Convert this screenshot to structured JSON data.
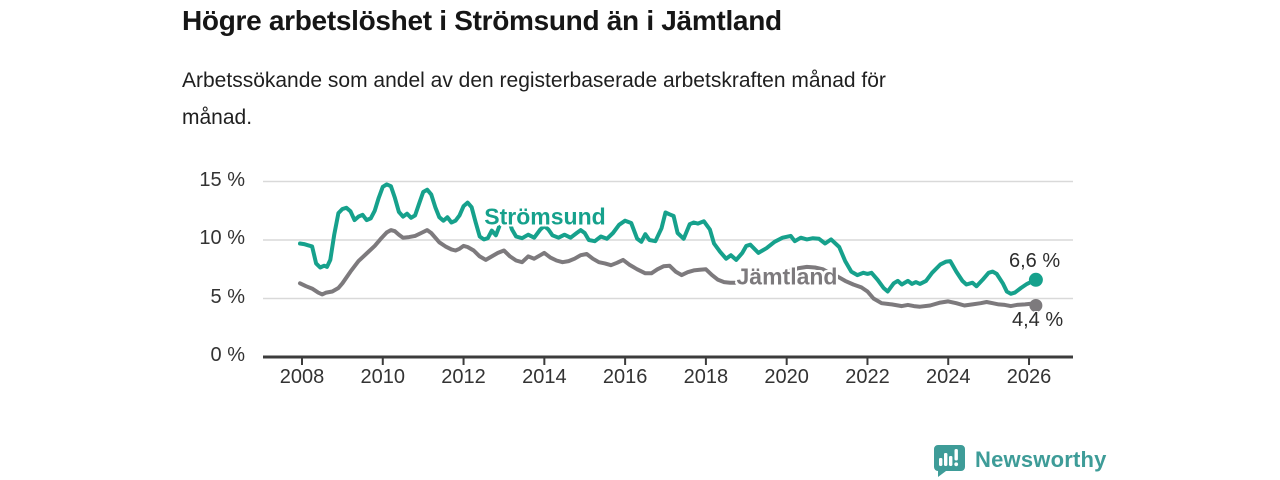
{
  "header": {
    "title": "Högre arbetslöshet i Strömsund än i Jämtland",
    "subtitle_line1": "Arbetssökande som andel av den registerbaserade arbetskraften månad för",
    "subtitle_line2": "månad."
  },
  "branding": {
    "name": "Newsworthy",
    "color": "#3e9c98",
    "icon": "bar-chart-speech-bubble-icon"
  },
  "chart_data": {
    "type": "line",
    "title": "Högre arbetslöshet i Strömsund än i Jämtland",
    "subtitle": "Arbetssökande som andel av den registerbaserade arbetskraften månad för månad.",
    "unit": "%",
    "grid": "horizontal",
    "x_axis": {
      "ticks": [
        2008,
        2010,
        2012,
        2014,
        2016,
        2018,
        2020,
        2022,
        2024,
        2026
      ],
      "range": [
        2007.05,
        2027.1
      ]
    },
    "y_axis": {
      "ticks": [
        {
          "value": 0,
          "label": "0 %"
        },
        {
          "value": 5,
          "label": "5 %"
        },
        {
          "value": 10,
          "label": "10 %"
        },
        {
          "value": 15,
          "label": "15 %"
        }
      ],
      "range": [
        0,
        16
      ]
    },
    "colors": {
      "gridline": "#d9d9d9",
      "axis": "#3c3c3c",
      "text": "#333333"
    },
    "series": [
      {
        "name": "Strömsund",
        "color": "#16a18c",
        "end_label": "6,6 %",
        "end_value": 6.6,
        "points": [
          [
            2007.95,
            9.7
          ],
          [
            2008.05,
            9.65
          ],
          [
            2008.15,
            9.55
          ],
          [
            2008.25,
            9.45
          ],
          [
            2008.35,
            8.0
          ],
          [
            2008.45,
            7.65
          ],
          [
            2008.55,
            7.8
          ],
          [
            2008.62,
            7.7
          ],
          [
            2008.7,
            8.3
          ],
          [
            2008.8,
            10.5
          ],
          [
            2008.9,
            12.3
          ],
          [
            2009.0,
            12.65
          ],
          [
            2009.1,
            12.75
          ],
          [
            2009.2,
            12.45
          ],
          [
            2009.3,
            11.7
          ],
          [
            2009.4,
            12.0
          ],
          [
            2009.5,
            12.15
          ],
          [
            2009.6,
            11.7
          ],
          [
            2009.7,
            11.85
          ],
          [
            2009.8,
            12.5
          ],
          [
            2009.9,
            13.6
          ],
          [
            2010.0,
            14.55
          ],
          [
            2010.1,
            14.75
          ],
          [
            2010.2,
            14.6
          ],
          [
            2010.3,
            13.6
          ],
          [
            2010.4,
            12.4
          ],
          [
            2010.5,
            12.0
          ],
          [
            2010.6,
            12.25
          ],
          [
            2010.7,
            11.9
          ],
          [
            2010.8,
            12.1
          ],
          [
            2010.9,
            13.1
          ],
          [
            2011.0,
            14.1
          ],
          [
            2011.1,
            14.3
          ],
          [
            2011.2,
            13.9
          ],
          [
            2011.3,
            12.8
          ],
          [
            2011.4,
            11.95
          ],
          [
            2011.5,
            11.65
          ],
          [
            2011.6,
            11.95
          ],
          [
            2011.7,
            11.5
          ],
          [
            2011.8,
            11.65
          ],
          [
            2011.9,
            12.1
          ],
          [
            2012.0,
            12.9
          ],
          [
            2012.1,
            13.2
          ],
          [
            2012.2,
            12.8
          ],
          [
            2012.3,
            11.5
          ],
          [
            2012.4,
            10.3
          ],
          [
            2012.5,
            10.05
          ],
          [
            2012.6,
            10.15
          ],
          [
            2012.7,
            10.8
          ],
          [
            2012.8,
            10.4
          ],
          [
            2012.9,
            11.3
          ],
          [
            2013.0,
            12.1
          ],
          [
            2013.1,
            11.9
          ],
          [
            2013.2,
            10.9
          ],
          [
            2013.3,
            10.3
          ],
          [
            2013.45,
            10.15
          ],
          [
            2013.6,
            10.45
          ],
          [
            2013.75,
            10.2
          ],
          [
            2013.9,
            10.9
          ],
          [
            2014.0,
            11.2
          ],
          [
            2014.1,
            10.9
          ],
          [
            2014.2,
            10.4
          ],
          [
            2014.35,
            10.2
          ],
          [
            2014.5,
            10.45
          ],
          [
            2014.65,
            10.2
          ],
          [
            2014.8,
            10.6
          ],
          [
            2014.9,
            10.85
          ],
          [
            2015.0,
            10.6
          ],
          [
            2015.1,
            10.0
          ],
          [
            2015.25,
            9.9
          ],
          [
            2015.4,
            10.3
          ],
          [
            2015.55,
            10.1
          ],
          [
            2015.7,
            10.6
          ],
          [
            2015.85,
            11.3
          ],
          [
            2016.0,
            11.65
          ],
          [
            2016.15,
            11.45
          ],
          [
            2016.3,
            10.1
          ],
          [
            2016.4,
            9.85
          ],
          [
            2016.5,
            10.5
          ],
          [
            2016.6,
            10.0
          ],
          [
            2016.75,
            9.9
          ],
          [
            2016.9,
            11.0
          ],
          [
            2017.0,
            12.35
          ],
          [
            2017.1,
            12.2
          ],
          [
            2017.2,
            12.05
          ],
          [
            2017.3,
            10.6
          ],
          [
            2017.45,
            10.1
          ],
          [
            2017.6,
            11.35
          ],
          [
            2017.7,
            11.5
          ],
          [
            2017.8,
            11.4
          ],
          [
            2017.95,
            11.6
          ],
          [
            2018.1,
            10.9
          ],
          [
            2018.2,
            9.7
          ],
          [
            2018.35,
            9.0
          ],
          [
            2018.5,
            8.4
          ],
          [
            2018.62,
            8.7
          ],
          [
            2018.75,
            8.3
          ],
          [
            2018.9,
            8.9
          ],
          [
            2019.0,
            9.5
          ],
          [
            2019.1,
            9.6
          ],
          [
            2019.3,
            8.9
          ],
          [
            2019.5,
            9.3
          ],
          [
            2019.7,
            9.85
          ],
          [
            2019.9,
            10.2
          ],
          [
            2020.1,
            10.35
          ],
          [
            2020.2,
            9.9
          ],
          [
            2020.35,
            10.2
          ],
          [
            2020.5,
            10.05
          ],
          [
            2020.65,
            10.15
          ],
          [
            2020.8,
            10.1
          ],
          [
            2020.95,
            9.7
          ],
          [
            2021.1,
            10.05
          ],
          [
            2021.3,
            9.4
          ],
          [
            2021.45,
            8.2
          ],
          [
            2021.6,
            7.3
          ],
          [
            2021.75,
            7.0
          ],
          [
            2021.9,
            7.2
          ],
          [
            2022.0,
            7.1
          ],
          [
            2022.1,
            7.2
          ],
          [
            2022.25,
            6.6
          ],
          [
            2022.4,
            5.9
          ],
          [
            2022.5,
            5.6
          ],
          [
            2022.65,
            6.3
          ],
          [
            2022.75,
            6.5
          ],
          [
            2022.85,
            6.2
          ],
          [
            2023.0,
            6.5
          ],
          [
            2023.1,
            6.25
          ],
          [
            2023.2,
            6.4
          ],
          [
            2023.3,
            6.25
          ],
          [
            2023.45,
            6.5
          ],
          [
            2023.6,
            7.2
          ],
          [
            2023.8,
            7.9
          ],
          [
            2023.95,
            8.15
          ],
          [
            2024.05,
            8.2
          ],
          [
            2024.2,
            7.3
          ],
          [
            2024.35,
            6.5
          ],
          [
            2024.45,
            6.2
          ],
          [
            2024.6,
            6.35
          ],
          [
            2024.7,
            6.05
          ],
          [
            2024.85,
            6.6
          ],
          [
            2025.0,
            7.2
          ],
          [
            2025.1,
            7.3
          ],
          [
            2025.2,
            7.1
          ],
          [
            2025.35,
            6.3
          ],
          [
            2025.45,
            5.6
          ],
          [
            2025.55,
            5.4
          ],
          [
            2025.65,
            5.5
          ],
          [
            2025.8,
            5.9
          ],
          [
            2025.95,
            6.25
          ],
          [
            2026.1,
            6.5
          ],
          [
            2026.17,
            6.6
          ]
        ]
      },
      {
        "name": "Jämtland",
        "color": "#7d7a7d",
        "end_label": "4,4 %",
        "end_value": 4.4,
        "points": [
          [
            2007.95,
            6.3
          ],
          [
            2008.1,
            6.05
          ],
          [
            2008.25,
            5.85
          ],
          [
            2008.4,
            5.5
          ],
          [
            2008.5,
            5.35
          ],
          [
            2008.6,
            5.5
          ],
          [
            2008.75,
            5.6
          ],
          [
            2008.9,
            5.9
          ],
          [
            2009.0,
            6.3
          ],
          [
            2009.2,
            7.3
          ],
          [
            2009.4,
            8.2
          ],
          [
            2009.6,
            8.85
          ],
          [
            2009.8,
            9.5
          ],
          [
            2009.95,
            10.1
          ],
          [
            2010.1,
            10.65
          ],
          [
            2010.2,
            10.85
          ],
          [
            2010.3,
            10.75
          ],
          [
            2010.4,
            10.45
          ],
          [
            2010.5,
            10.2
          ],
          [
            2010.65,
            10.25
          ],
          [
            2010.8,
            10.35
          ],
          [
            2010.95,
            10.6
          ],
          [
            2011.1,
            10.85
          ],
          [
            2011.2,
            10.6
          ],
          [
            2011.3,
            10.2
          ],
          [
            2011.4,
            9.8
          ],
          [
            2011.55,
            9.45
          ],
          [
            2011.7,
            9.2
          ],
          [
            2011.8,
            9.1
          ],
          [
            2011.9,
            9.25
          ],
          [
            2012.0,
            9.5
          ],
          [
            2012.1,
            9.4
          ],
          [
            2012.25,
            9.1
          ],
          [
            2012.4,
            8.6
          ],
          [
            2012.55,
            8.3
          ],
          [
            2012.7,
            8.6
          ],
          [
            2012.85,
            8.9
          ],
          [
            2013.0,
            9.1
          ],
          [
            2013.15,
            8.6
          ],
          [
            2013.3,
            8.25
          ],
          [
            2013.45,
            8.1
          ],
          [
            2013.6,
            8.6
          ],
          [
            2013.75,
            8.4
          ],
          [
            2013.9,
            8.7
          ],
          [
            2014.0,
            8.9
          ],
          [
            2014.15,
            8.5
          ],
          [
            2014.3,
            8.25
          ],
          [
            2014.45,
            8.1
          ],
          [
            2014.6,
            8.2
          ],
          [
            2014.75,
            8.4
          ],
          [
            2014.9,
            8.7
          ],
          [
            2015.05,
            8.8
          ],
          [
            2015.2,
            8.4
          ],
          [
            2015.35,
            8.1
          ],
          [
            2015.5,
            8.0
          ],
          [
            2015.65,
            7.85
          ],
          [
            2015.8,
            8.05
          ],
          [
            2015.95,
            8.3
          ],
          [
            2016.1,
            7.9
          ],
          [
            2016.3,
            7.5
          ],
          [
            2016.5,
            7.15
          ],
          [
            2016.65,
            7.15
          ],
          [
            2016.8,
            7.5
          ],
          [
            2016.95,
            7.75
          ],
          [
            2017.1,
            7.8
          ],
          [
            2017.25,
            7.3
          ],
          [
            2017.4,
            7.0
          ],
          [
            2017.55,
            7.25
          ],
          [
            2017.7,
            7.4
          ],
          [
            2017.85,
            7.45
          ],
          [
            2018.0,
            7.5
          ],
          [
            2018.15,
            7.0
          ],
          [
            2018.3,
            6.6
          ],
          [
            2018.45,
            6.4
          ],
          [
            2018.6,
            6.35
          ],
          [
            2018.75,
            6.35
          ],
          [
            2018.9,
            6.4
          ],
          [
            2019.1,
            6.5
          ],
          [
            2019.3,
            6.6
          ],
          [
            2019.5,
            6.8
          ],
          [
            2019.7,
            6.9
          ],
          [
            2019.9,
            7.1
          ],
          [
            2020.1,
            7.4
          ],
          [
            2020.3,
            7.6
          ],
          [
            2020.5,
            7.7
          ],
          [
            2020.7,
            7.65
          ],
          [
            2020.9,
            7.5
          ],
          [
            2021.05,
            7.2
          ],
          [
            2021.25,
            6.9
          ],
          [
            2021.45,
            6.5
          ],
          [
            2021.65,
            6.2
          ],
          [
            2021.85,
            5.95
          ],
          [
            2022.0,
            5.6
          ],
          [
            2022.15,
            5.0
          ],
          [
            2022.35,
            4.6
          ],
          [
            2022.6,
            4.5
          ],
          [
            2022.85,
            4.35
          ],
          [
            2023.0,
            4.45
          ],
          [
            2023.15,
            4.35
          ],
          [
            2023.3,
            4.3
          ],
          [
            2023.55,
            4.4
          ],
          [
            2023.8,
            4.65
          ],
          [
            2024.0,
            4.75
          ],
          [
            2024.2,
            4.6
          ],
          [
            2024.4,
            4.4
          ],
          [
            2024.6,
            4.5
          ],
          [
            2024.8,
            4.6
          ],
          [
            2024.95,
            4.7
          ],
          [
            2025.1,
            4.6
          ],
          [
            2025.25,
            4.5
          ],
          [
            2025.4,
            4.45
          ],
          [
            2025.55,
            4.35
          ],
          [
            2025.7,
            4.45
          ],
          [
            2025.9,
            4.5
          ],
          [
            2026.05,
            4.55
          ],
          [
            2026.17,
            4.4
          ]
        ]
      }
    ]
  }
}
